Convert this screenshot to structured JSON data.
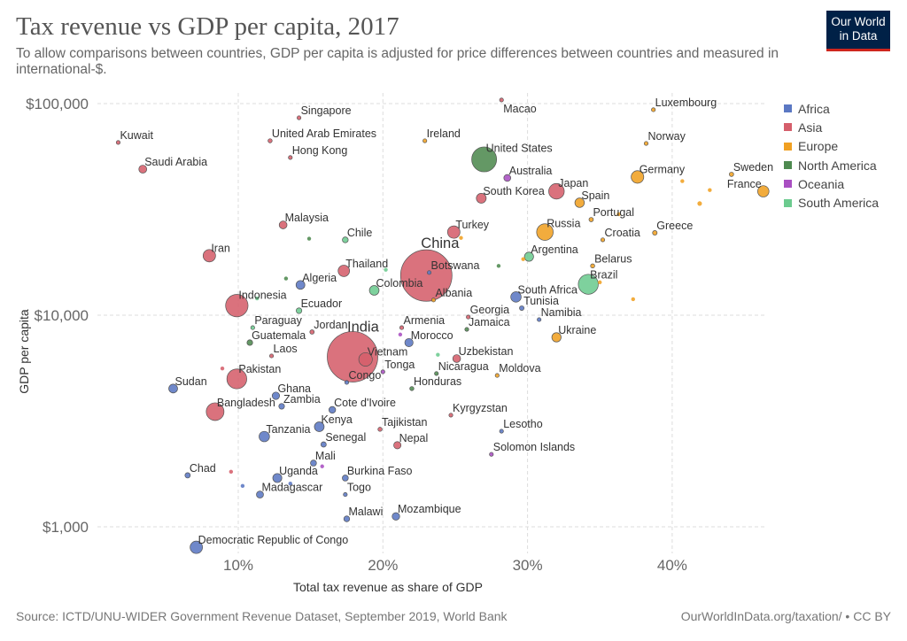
{
  "header": {
    "title": "Tax revenue vs GDP per capita, 2017",
    "subtitle": "To allow comparisons between countries, GDP per capita is adjusted for price differences between countries and measured in international-$.",
    "logo": "Our World in Data"
  },
  "footer": {
    "source": "Source: ICTD/UNU-WIDER Government Revenue Dataset, September 2019, World Bank",
    "link": "OurWorldInData.org/taxation/ • CC BY"
  },
  "colors": {
    "Africa": "#5b78c3",
    "Asia": "#d55e6b",
    "Europe": "#f0a022",
    "North America": "#4e8a50",
    "Oceania": "#a94fc2",
    "South America": "#6ccb8f"
  },
  "chart_data": {
    "type": "scatter",
    "title": "Tax revenue vs GDP per capita, 2017",
    "xlabel": "Total tax revenue as share of GDP",
    "ylabel": "GDP per capita",
    "xlim": [
      0,
      46.5
    ],
    "ylim": [
      700,
      110000
    ],
    "yscale": "log",
    "xticks": [
      {
        "v": 10,
        "label": "10%"
      },
      {
        "v": 20,
        "label": "20%"
      },
      {
        "v": 30,
        "label": "30%"
      },
      {
        "v": 40,
        "label": "40%"
      }
    ],
    "yticks": [
      {
        "v": 1000,
        "label": "$1,000"
      },
      {
        "v": 10000,
        "label": "$10,000"
      },
      {
        "v": 100000,
        "label": "$100,000"
      }
    ],
    "grid": true,
    "legend_position": "right",
    "legend": [
      "Africa",
      "Asia",
      "Europe",
      "North America",
      "Oceania",
      "South America"
    ],
    "size_variable": "population (millions)",
    "points": [
      {
        "name": "Kuwait",
        "region": "Asia",
        "x": 1.7,
        "y": 65500,
        "pop": 4
      },
      {
        "name": "Saudi Arabia",
        "region": "Asia",
        "x": 3.4,
        "y": 49000,
        "pop": 33
      },
      {
        "name": "Singapore",
        "region": "Asia",
        "x": 14.2,
        "y": 85700,
        "pop": 6
      },
      {
        "name": "United Arab Emirates",
        "region": "Asia",
        "x": 12.2,
        "y": 66700,
        "pop": 9
      },
      {
        "name": "Hong Kong",
        "region": "Asia",
        "x": 13.6,
        "y": 55600,
        "pop": 7
      },
      {
        "name": "Malaysia",
        "region": "Asia",
        "x": 13.1,
        "y": 26700,
        "pop": 32
      },
      {
        "name": "Iran",
        "region": "Asia",
        "x": 8.0,
        "y": 19100,
        "pop": 81
      },
      {
        "name": "Chile",
        "region": "South America",
        "x": 17.4,
        "y": 22700,
        "pop": 18
      },
      {
        "name": "Thailand",
        "region": "Asia",
        "x": 17.3,
        "y": 16200,
        "pop": 69
      },
      {
        "name": "Algeria",
        "region": "Africa",
        "x": 14.3,
        "y": 13900,
        "pop": 41
      },
      {
        "name": "Indonesia",
        "region": "Asia",
        "x": 9.9,
        "y": 11100,
        "pop": 264
      },
      {
        "name": "Colombia",
        "region": "South America",
        "x": 19.4,
        "y": 13100,
        "pop": 49
      },
      {
        "name": "Ecuador",
        "region": "South America",
        "x": 14.2,
        "y": 10500,
        "pop": 17
      },
      {
        "name": "China",
        "region": "Asia",
        "x": 23.0,
        "y": 15400,
        "pop": 1386,
        "big": true
      },
      {
        "name": "Botswana",
        "region": "Africa",
        "x": 23.2,
        "y": 15900,
        "pop": 2
      },
      {
        "name": "Albania",
        "region": "Europe",
        "x": 23.5,
        "y": 11800,
        "pop": 3
      },
      {
        "name": "Macao",
        "region": "Asia",
        "x": 28.2,
        "y": 104000,
        "pop": 1,
        "below": true
      },
      {
        "name": "Ireland",
        "region": "Europe",
        "x": 22.9,
        "y": 66700,
        "pop": 5
      },
      {
        "name": "United States",
        "region": "North America",
        "x": 27.0,
        "y": 54500,
        "pop": 325
      },
      {
        "name": "Australia",
        "region": "Oceania",
        "x": 28.6,
        "y": 44500,
        "pop": 25
      },
      {
        "name": "South Korea",
        "region": "Asia",
        "x": 26.8,
        "y": 35700,
        "pop": 51
      },
      {
        "name": "Japan",
        "region": "Asia",
        "x": 32.0,
        "y": 38500,
        "pop": 127
      },
      {
        "name": "Spain",
        "region": "Europe",
        "x": 33.6,
        "y": 34000,
        "pop": 47
      },
      {
        "name": "Turkey",
        "region": "Asia",
        "x": 24.9,
        "y": 24700,
        "pop": 81
      },
      {
        "name": "Russia",
        "region": "Europe",
        "x": 31.2,
        "y": 24700,
        "pop": 144
      },
      {
        "name": "Portugal",
        "region": "Europe",
        "x": 34.4,
        "y": 28300,
        "pop": 10
      },
      {
        "name": "Croatia",
        "region": "Europe",
        "x": 35.2,
        "y": 22700,
        "pop": 4
      },
      {
        "name": "Greece",
        "region": "Europe",
        "x": 38.8,
        "y": 24500,
        "pop": 11
      },
      {
        "name": "Germany",
        "region": "Europe",
        "x": 37.6,
        "y": 45000,
        "pop": 83
      },
      {
        "name": "Sweden",
        "region": "Europe",
        "x": 44.1,
        "y": 46300,
        "pop": 10
      },
      {
        "name": "Luxembourg",
        "region": "Europe",
        "x": 38.7,
        "y": 93500,
        "pop": 1
      },
      {
        "name": "Norway",
        "region": "Europe",
        "x": 38.2,
        "y": 64800,
        "pop": 5
      },
      {
        "name": "France",
        "region": "Europe",
        "x": 46.3,
        "y": 38500,
        "pop": 67,
        "left": true
      },
      {
        "name": "Argentina",
        "region": "South America",
        "x": 30.1,
        "y": 18900,
        "pop": 44
      },
      {
        "name": "Belarus",
        "region": "Europe",
        "x": 34.5,
        "y": 17100,
        "pop": 9
      },
      {
        "name": "Brazil",
        "region": "South America",
        "x": 34.2,
        "y": 14000,
        "pop": 209
      },
      {
        "name": "South Africa",
        "region": "Africa",
        "x": 29.2,
        "y": 12200,
        "pop": 57
      },
      {
        "name": "Tunisia",
        "region": "Africa",
        "x": 29.6,
        "y": 10800,
        "pop": 11
      },
      {
        "name": "Namibia",
        "region": "Africa",
        "x": 30.8,
        "y": 9530,
        "pop": 2
      },
      {
        "name": "Georgia",
        "region": "Asia",
        "x": 25.9,
        "y": 9800,
        "pop": 4
      },
      {
        "name": "Jamaica",
        "region": "North America",
        "x": 25.8,
        "y": 8570,
        "pop": 3
      },
      {
        "name": "Armenia",
        "region": "Asia",
        "x": 21.3,
        "y": 8730,
        "pop": 3
      },
      {
        "name": "Morocco",
        "region": "Africa",
        "x": 21.8,
        "y": 7420,
        "pop": 36
      },
      {
        "name": "Ukraine",
        "region": "Europe",
        "x": 32.0,
        "y": 7860,
        "pop": 45
      },
      {
        "name": "Uzbekistan",
        "region": "Asia",
        "x": 25.1,
        "y": 6240,
        "pop": 32
      },
      {
        "name": "Nicaragua",
        "region": "North America",
        "x": 23.7,
        "y": 5300,
        "pop": 6
      },
      {
        "name": "Moldova",
        "region": "Europe",
        "x": 27.9,
        "y": 5190,
        "pop": 4
      },
      {
        "name": "Honduras",
        "region": "North America",
        "x": 22.0,
        "y": 4500,
        "pop": 9
      },
      {
        "name": "India",
        "region": "Asia",
        "x": 17.9,
        "y": 6360,
        "pop": 1339,
        "big": true
      },
      {
        "name": "Vietnam",
        "region": "Asia",
        "x": 18.8,
        "y": 6180,
        "pop": 96
      },
      {
        "name": "Tonga",
        "region": "Oceania",
        "x": 20.0,
        "y": 5400,
        "pop": 0.1
      },
      {
        "name": "Congo",
        "region": "Africa",
        "x": 17.5,
        "y": 4810,
        "pop": 5
      },
      {
        "name": "Paraguay",
        "region": "South America",
        "x": 11.0,
        "y": 8730,
        "pop": 7
      },
      {
        "name": "Jordan",
        "region": "Asia",
        "x": 15.1,
        "y": 8330,
        "pop": 10
      },
      {
        "name": "Guatemala",
        "region": "North America",
        "x": 10.8,
        "y": 7420,
        "pop": 17
      },
      {
        "name": "Laos",
        "region": "Asia",
        "x": 12.3,
        "y": 6420,
        "pop": 7
      },
      {
        "name": "Pakistan",
        "region": "Asia",
        "x": 9.9,
        "y": 5000,
        "pop": 207
      },
      {
        "name": "Sudan",
        "region": "Africa",
        "x": 5.5,
        "y": 4500,
        "pop": 41
      },
      {
        "name": "Ghana",
        "region": "Africa",
        "x": 12.6,
        "y": 4160,
        "pop": 29
      },
      {
        "name": "Bangladesh",
        "region": "Asia",
        "x": 8.4,
        "y": 3500,
        "pop": 165
      },
      {
        "name": "Zambia",
        "region": "Africa",
        "x": 13.0,
        "y": 3710,
        "pop": 17
      },
      {
        "name": "Cote d'Ivoire",
        "region": "Africa",
        "x": 16.5,
        "y": 3570,
        "pop": 24
      },
      {
        "name": "Kenya",
        "region": "Africa",
        "x": 15.6,
        "y": 2970,
        "pop": 50
      },
      {
        "name": "Tanzania",
        "region": "Africa",
        "x": 11.8,
        "y": 2670,
        "pop": 57
      },
      {
        "name": "Senegal",
        "region": "Africa",
        "x": 15.9,
        "y": 2450,
        "pop": 15
      },
      {
        "name": "Tajikistan",
        "region": "Asia",
        "x": 19.8,
        "y": 2890,
        "pop": 9
      },
      {
        "name": "Nepal",
        "region": "Asia",
        "x": 21.0,
        "y": 2430,
        "pop": 28
      },
      {
        "name": "Kyrgyzstan",
        "region": "Asia",
        "x": 24.7,
        "y": 3370,
        "pop": 6
      },
      {
        "name": "Lesotho",
        "region": "Africa",
        "x": 28.2,
        "y": 2830,
        "pop": 2
      },
      {
        "name": "Solomon Islands",
        "region": "Oceania",
        "x": 27.5,
        "y": 2200,
        "pop": 0.6
      },
      {
        "name": "Mali",
        "region": "Africa",
        "x": 15.2,
        "y": 2000,
        "pop": 19
      },
      {
        "name": "Chad",
        "region": "Africa",
        "x": 6.5,
        "y": 1750,
        "pop": 15
      },
      {
        "name": "Uganda",
        "region": "Africa",
        "x": 12.7,
        "y": 1700,
        "pop": 43
      },
      {
        "name": "Burkina Faso",
        "region": "Africa",
        "x": 17.4,
        "y": 1700,
        "pop": 19
      },
      {
        "name": "Madagascar",
        "region": "Africa",
        "x": 11.5,
        "y": 1420,
        "pop": 26
      },
      {
        "name": "Togo",
        "region": "Africa",
        "x": 17.4,
        "y": 1420,
        "pop": 8
      },
      {
        "name": "Malawi",
        "region": "Africa",
        "x": 17.5,
        "y": 1090,
        "pop": 18
      },
      {
        "name": "Mozambique",
        "region": "Africa",
        "x": 20.9,
        "y": 1120,
        "pop": 30
      },
      {
        "name": "Democratic Republic of Congo",
        "region": "Africa",
        "x": 7.1,
        "y": 800,
        "pop": 81
      },
      {
        "name": "",
        "region": "Asia",
        "x": 8.9,
        "y": 5600,
        "pop": 8
      },
      {
        "name": "",
        "region": "Asia",
        "x": 9.5,
        "y": 1820,
        "pop": 7
      },
      {
        "name": "",
        "region": "Europe",
        "x": 41.9,
        "y": 33700,
        "pop": 11
      },
      {
        "name": "",
        "region": "Europe",
        "x": 42.6,
        "y": 39000,
        "pop": 2
      },
      {
        "name": "",
        "region": "Europe",
        "x": 40.7,
        "y": 43000,
        "pop": 6
      },
      {
        "name": "",
        "region": "Europe",
        "x": 36.3,
        "y": 30000,
        "pop": 2
      },
      {
        "name": "",
        "region": "Europe",
        "x": 37.3,
        "y": 11900,
        "pop": 2
      },
      {
        "name": "",
        "region": "Europe",
        "x": 35.0,
        "y": 14300,
        "pop": 3
      },
      {
        "name": "",
        "region": "Europe",
        "x": 25.4,
        "y": 23200,
        "pop": 3
      },
      {
        "name": "",
        "region": "Europe",
        "x": 29.7,
        "y": 18400,
        "pop": 2
      },
      {
        "name": "",
        "region": "North America",
        "x": 14.9,
        "y": 23000,
        "pop": 2
      },
      {
        "name": "",
        "region": "North America",
        "x": 13.3,
        "y": 14900,
        "pop": 3
      },
      {
        "name": "",
        "region": "North America",
        "x": 28.0,
        "y": 17100,
        "pop": 1
      },
      {
        "name": "",
        "region": "South America",
        "x": 20.2,
        "y": 16400,
        "pop": 3
      },
      {
        "name": "",
        "region": "South America",
        "x": 11.3,
        "y": 12000,
        "pop": 3
      },
      {
        "name": "",
        "region": "South America",
        "x": 23.8,
        "y": 6500,
        "pop": 1
      },
      {
        "name": "",
        "region": "Africa",
        "x": 13.6,
        "y": 1600,
        "pop": 3
      },
      {
        "name": "",
        "region": "Africa",
        "x": 10.3,
        "y": 1560,
        "pop": 1
      },
      {
        "name": "",
        "region": "Oceania",
        "x": 21.2,
        "y": 8100,
        "pop": 1
      },
      {
        "name": "",
        "region": "Oceania",
        "x": 15.8,
        "y": 1930,
        "pop": 1
      }
    ]
  }
}
